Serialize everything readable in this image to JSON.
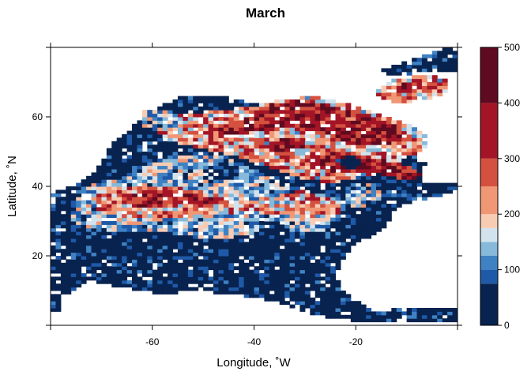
{
  "chart_data": {
    "type": "heatmap",
    "title": "March",
    "xlabel": "Longitude, ˚W",
    "ylabel": "Latitude, ˚N",
    "xlim": [
      -80,
      0
    ],
    "ylim": [
      0,
      80
    ],
    "x_ticks": [
      -60,
      -40,
      -20
    ],
    "y_ticks": [
      20,
      40,
      60
    ],
    "colorbar": {
      "range": [
        0,
        500
      ],
      "ticks": [
        0,
        100,
        200,
        300,
        400,
        500
      ],
      "breaks": [
        0,
        75,
        100,
        125,
        150,
        175,
        200,
        250,
        300,
        400,
        500
      ],
      "colors": [
        "#08234f",
        "#1f5aa8",
        "#3f82c3",
        "#86b9da",
        "#d3e3ee",
        "#f8cbb3",
        "#f09775",
        "#d4513f",
        "#a31526",
        "#5e0a20"
      ]
    },
    "grid": false,
    "legend": "right",
    "cell_size_degrees": 1,
    "regions": [
      {
        "value": 30,
        "polygon": [
          [
            -80,
            10
          ],
          [
            -76,
            9
          ],
          [
            -72,
            13
          ],
          [
            -66,
            11
          ],
          [
            -62,
            10
          ],
          [
            -58,
            9
          ],
          [
            -52,
            10
          ],
          [
            -44,
            9
          ],
          [
            -36,
            7
          ],
          [
            -30,
            4
          ],
          [
            -24,
            2
          ],
          [
            -18,
            1
          ],
          [
            -10,
            1
          ],
          [
            -2,
            1
          ],
          [
            0,
            1
          ],
          [
            0,
            5
          ],
          [
            -10,
            5
          ],
          [
            -16,
            4
          ],
          [
            -22,
            9
          ],
          [
            -24,
            15
          ],
          [
            -22,
            20
          ],
          [
            -20,
            24
          ],
          [
            -16,
            26
          ],
          [
            -14,
            28
          ],
          [
            -12,
            34
          ],
          [
            -8,
            36
          ],
          [
            -4,
            37
          ],
          [
            0,
            39
          ],
          [
            0,
            41
          ],
          [
            -5,
            41
          ],
          [
            -8,
            43
          ],
          [
            -6,
            47
          ],
          [
            -10,
            51
          ],
          [
            -16,
            55
          ],
          [
            -24,
            58
          ],
          [
            -30,
            60
          ],
          [
            -38,
            63
          ],
          [
            -46,
            66
          ],
          [
            -54,
            66
          ],
          [
            -60,
            62
          ],
          [
            -64,
            57
          ],
          [
            -68,
            52
          ],
          [
            -70,
            47
          ],
          [
            -72,
            43
          ],
          [
            -76,
            40
          ],
          [
            -80,
            38
          ]
        ]
      },
      {
        "value": 30,
        "polygon": [
          [
            -80,
            4
          ],
          [
            -78,
            4
          ],
          [
            -78,
            9
          ],
          [
            -80,
            9
          ]
        ]
      },
      {
        "value": 30,
        "polygon": [
          [
            -16,
            73
          ],
          [
            -12,
            75
          ],
          [
            -6,
            78
          ],
          [
            -2,
            80
          ],
          [
            0,
            80
          ],
          [
            0,
            73
          ],
          [
            -6,
            73
          ],
          [
            -12,
            72
          ]
        ]
      },
      {
        "value": 130,
        "polygon": [
          [
            -74,
            40
          ],
          [
            -66,
            43
          ],
          [
            -60,
            47
          ],
          [
            -56,
            49
          ],
          [
            -50,
            50
          ],
          [
            -44,
            48
          ],
          [
            -38,
            43
          ],
          [
            -30,
            39
          ],
          [
            -22,
            36
          ],
          [
            -22,
            31
          ],
          [
            -26,
            27
          ],
          [
            -32,
            27
          ],
          [
            -36,
            30
          ],
          [
            -42,
            29
          ],
          [
            -50,
            28
          ],
          [
            -58,
            27
          ],
          [
            -66,
            27
          ],
          [
            -72,
            28
          ],
          [
            -76,
            30
          ]
        ]
      },
      {
        "value": 225,
        "polygon": [
          [
            -72,
            37
          ],
          [
            -66,
            40
          ],
          [
            -60,
            40
          ],
          [
            -54,
            40
          ],
          [
            -48,
            38
          ],
          [
            -42,
            36
          ],
          [
            -36,
            37
          ],
          [
            -30,
            39
          ],
          [
            -24,
            36
          ],
          [
            -22,
            33
          ],
          [
            -26,
            31
          ],
          [
            -32,
            31
          ],
          [
            -40,
            33
          ],
          [
            -48,
            32
          ],
          [
            -56,
            31
          ],
          [
            -64,
            31
          ],
          [
            -70,
            32
          ]
        ]
      },
      {
        "value": 350,
        "polygon": [
          [
            -66,
            38
          ],
          [
            -58,
            39
          ],
          [
            -52,
            38
          ],
          [
            -48,
            37
          ],
          [
            -44,
            37
          ],
          [
            -48,
            35
          ],
          [
            -56,
            35
          ],
          [
            -62,
            34
          ],
          [
            -66,
            35
          ]
        ]
      },
      {
        "value": 225,
        "polygon": [
          [
            -60,
            60
          ],
          [
            -54,
            61
          ],
          [
            -46,
            62
          ],
          [
            -40,
            63
          ],
          [
            -34,
            65
          ],
          [
            -28,
            66
          ],
          [
            -22,
            64
          ],
          [
            -16,
            61
          ],
          [
            -10,
            58
          ],
          [
            -6,
            55
          ],
          [
            -6,
            51
          ],
          [
            -12,
            47
          ],
          [
            -18,
            43
          ],
          [
            -24,
            41
          ],
          [
            -30,
            42
          ],
          [
            -36,
            45
          ],
          [
            -42,
            48
          ],
          [
            -50,
            51
          ],
          [
            -56,
            53
          ],
          [
            -60,
            56
          ]
        ]
      },
      {
        "value": 350,
        "polygon": [
          [
            -50,
            56
          ],
          [
            -42,
            60
          ],
          [
            -36,
            64
          ],
          [
            -30,
            65
          ],
          [
            -24,
            63
          ],
          [
            -18,
            61
          ],
          [
            -12,
            58
          ],
          [
            -8,
            54
          ],
          [
            -14,
            52
          ],
          [
            -22,
            52
          ],
          [
            -26,
            55
          ],
          [
            -32,
            57
          ],
          [
            -38,
            56
          ],
          [
            -44,
            55
          ]
        ]
      },
      {
        "value": 350,
        "polygon": [
          [
            -30,
            48
          ],
          [
            -24,
            50
          ],
          [
            -18,
            49
          ],
          [
            -12,
            47
          ],
          [
            -8,
            45
          ],
          [
            -6,
            43
          ],
          [
            -10,
            42
          ],
          [
            -16,
            44
          ],
          [
            -22,
            44
          ],
          [
            -28,
            45
          ]
        ]
      },
      {
        "value": 350,
        "polygon": [
          [
            -38,
            52
          ],
          [
            -34,
            54
          ],
          [
            -30,
            53
          ],
          [
            -30,
            51
          ],
          [
            -36,
            50
          ]
        ]
      },
      {
        "value": 225,
        "polygon": [
          [
            -16,
            68
          ],
          [
            -12,
            71
          ],
          [
            -6,
            72
          ],
          [
            -2,
            71
          ],
          [
            -2,
            67
          ],
          [
            -6,
            65
          ],
          [
            -12,
            64
          ],
          [
            -16,
            66
          ]
        ]
      },
      {
        "value": 350,
        "polygon": [
          [
            -12,
            69
          ],
          [
            -8,
            71
          ],
          [
            -6,
            69
          ],
          [
            -10,
            67
          ]
        ]
      },
      {
        "value": 130,
        "polygon": [
          [
            -62,
            62
          ],
          [
            -56,
            62
          ],
          [
            -54,
            58
          ],
          [
            -58,
            56
          ],
          [
            -62,
            57
          ]
        ]
      },
      {
        "value": 130,
        "polygon": [
          [
            -22,
            40
          ],
          [
            -18,
            41
          ],
          [
            -14,
            38
          ],
          [
            -16,
            35
          ],
          [
            -20,
            34
          ],
          [
            -22,
            36
          ]
        ]
      },
      {
        "value": 130,
        "polygon": [
          [
            -56,
            28
          ],
          [
            -48,
            29
          ],
          [
            -42,
            30
          ],
          [
            -38,
            29
          ],
          [
            -40,
            26
          ],
          [
            -48,
            25
          ],
          [
            -54,
            26
          ]
        ]
      },
      {
        "value": 30,
        "polygon": [
          [
            -66,
            50
          ],
          [
            -60,
            52
          ],
          [
            -56,
            50
          ],
          [
            -58,
            47
          ],
          [
            -62,
            46
          ],
          [
            -66,
            47
          ]
        ]
      },
      {
        "value": 30,
        "polygon": [
          [
            -50,
            45
          ],
          [
            -46,
            47
          ],
          [
            -42,
            45
          ],
          [
            -44,
            42
          ],
          [
            -48,
            42
          ]
        ]
      },
      {
        "value": 30,
        "polygon": [
          [
            -24,
            48
          ],
          [
            -20,
            49
          ],
          [
            -18,
            47
          ],
          [
            -20,
            45
          ],
          [
            -23,
            46
          ]
        ]
      }
    ]
  }
}
